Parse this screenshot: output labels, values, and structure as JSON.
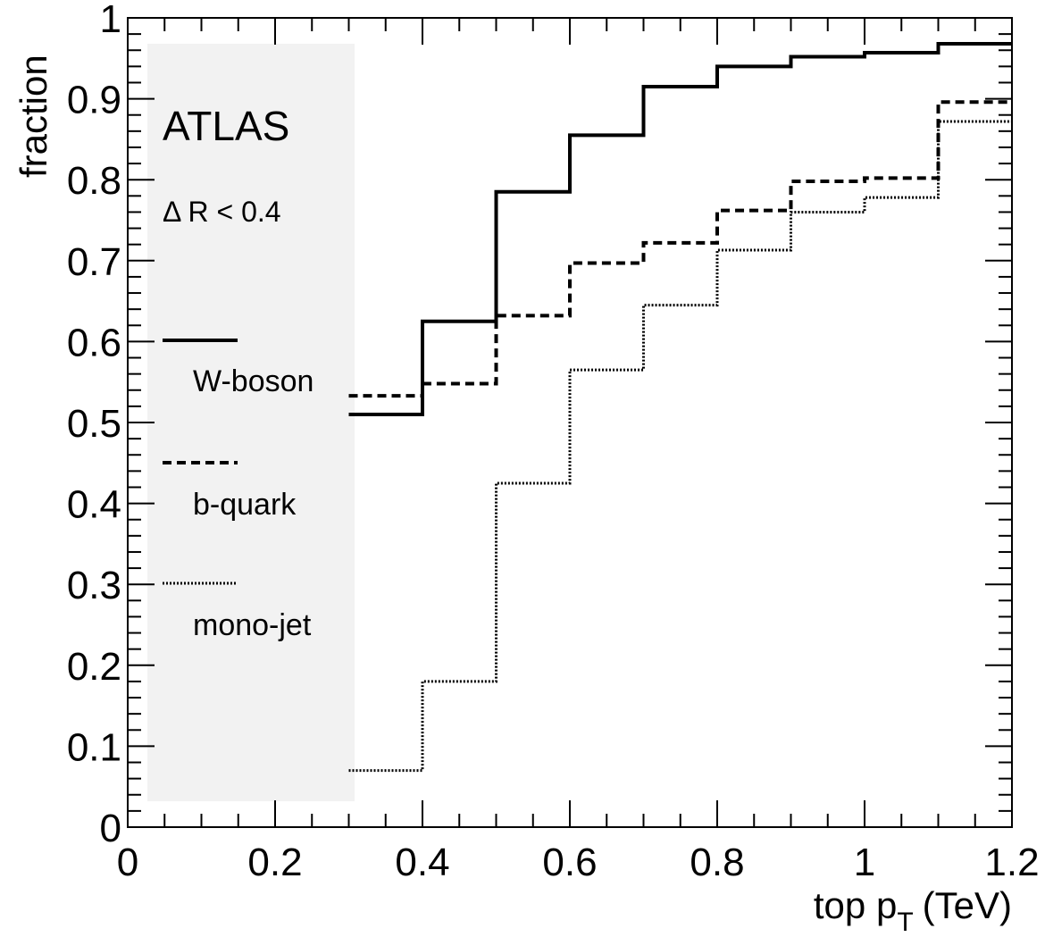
{
  "chart_data": {
    "type": "line",
    "step": true,
    "xlabel": "top p",
    "xlabel_subscript": "T",
    "xlabel_unit": "(TeV)",
    "ylabel": "fraction",
    "xlim": [
      0,
      1.2
    ],
    "ylim": [
      0,
      1
    ],
    "xticks": [
      "0",
      "0.2",
      "0.4",
      "0.6",
      "0.8",
      "1",
      "1.2"
    ],
    "yticks": [
      "0",
      "0.1",
      "0.2",
      "0.3",
      "0.4",
      "0.5",
      "0.6",
      "0.7",
      "0.8",
      "0.9",
      "1"
    ],
    "bin_edges": [
      0,
      0.1,
      0.2,
      0.3,
      0.4,
      0.5,
      0.6,
      0.7,
      0.8,
      0.9,
      1.0,
      1.1,
      1.2
    ],
    "series": [
      {
        "name": "W-boson",
        "style": "solid",
        "values": [
          null,
          null,
          null,
          0.51,
          0.625,
          0.785,
          0.855,
          0.915,
          0.94,
          0.952,
          0.957,
          0.968
        ]
      },
      {
        "name": "b-quark",
        "style": "dashed",
        "values": [
          null,
          null,
          null,
          0.533,
          0.548,
          0.632,
          0.697,
          0.722,
          0.762,
          0.798,
          0.802,
          0.896
        ]
      },
      {
        "name": "mono-jet",
        "style": "dotted",
        "values": [
          null,
          null,
          null,
          0.07,
          0.18,
          0.425,
          0.565,
          0.645,
          0.713,
          0.76,
          0.778,
          0.872
        ]
      }
    ],
    "legend": {
      "placement": "left",
      "experiment": "ATLAS",
      "cut": "Δ R < 0.4"
    },
    "grid": false
  }
}
